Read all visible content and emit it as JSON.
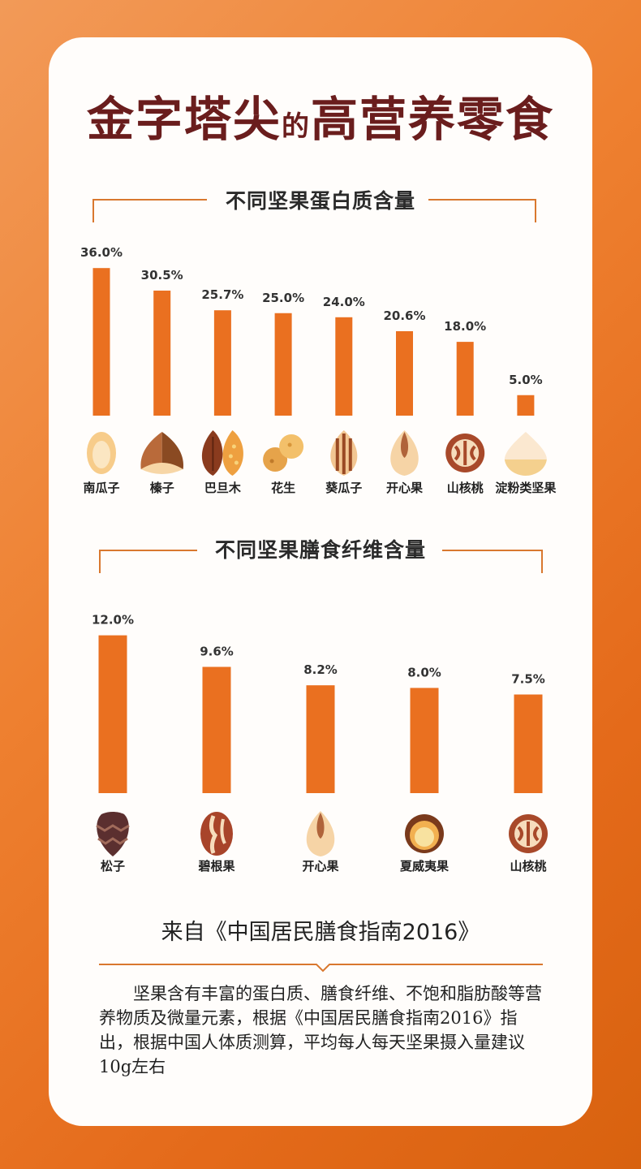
{
  "title": {
    "part1": "金字塔尖",
    "connector": "的",
    "part2": "高营养零食"
  },
  "chart_data": [
    {
      "type": "bar",
      "title": "不同坚果蛋白质含量",
      "categories": [
        "南瓜子",
        "榛子",
        "巴旦木",
        "花生",
        "葵瓜子",
        "开心果",
        "山核桃",
        "淀粉类坚果"
      ],
      "values": [
        36.0,
        30.5,
        25.7,
        25.0,
        24.0,
        20.6,
        18.0,
        5.0
      ],
      "value_labels": [
        "36.0%",
        "30.5%",
        "25.7%",
        "25.0%",
        "24.0%",
        "20.6%",
        "18.0%",
        "5.0%"
      ],
      "unit": "%",
      "icons": [
        "pumpkin-seed-icon",
        "hazelnut-icon",
        "almond-icon",
        "peanut-icon",
        "sunflower-seed-icon",
        "pistachio-icon",
        "walnut-icon",
        "chestnut-icon"
      ],
      "bar_color": "#ea7020",
      "grid": false,
      "legend": "none"
    },
    {
      "type": "bar",
      "title": "不同坚果膳食纤维含量",
      "categories": [
        "松子",
        "碧根果",
        "开心果",
        "夏威夷果",
        "山核桃"
      ],
      "values": [
        12.0,
        9.6,
        8.2,
        8.0,
        7.5
      ],
      "value_labels": [
        "12.0%",
        "9.6%",
        "8.2%",
        "8.0%",
        "7.5%"
      ],
      "unit": "%",
      "icons": [
        "pine-nut-icon",
        "pecan-icon",
        "pistachio-icon",
        "macadamia-icon",
        "walnut-icon"
      ],
      "bar_color": "#ea7020",
      "grid": false,
      "legend": "none"
    }
  ],
  "source": "来自《中国居民膳食指南2016》",
  "description": "坚果含有丰富的蛋白质、膳食纤维、不饱和脂肪酸等营养物质及微量元素，根据《中国居民膳食指南2016》指出，根据中国人体质测算，平均每人每天坚果摄入量建议10g左右",
  "colors": {
    "accent": "#ea7020",
    "title": "#6a1d1d",
    "divider": "#d9782f"
  }
}
